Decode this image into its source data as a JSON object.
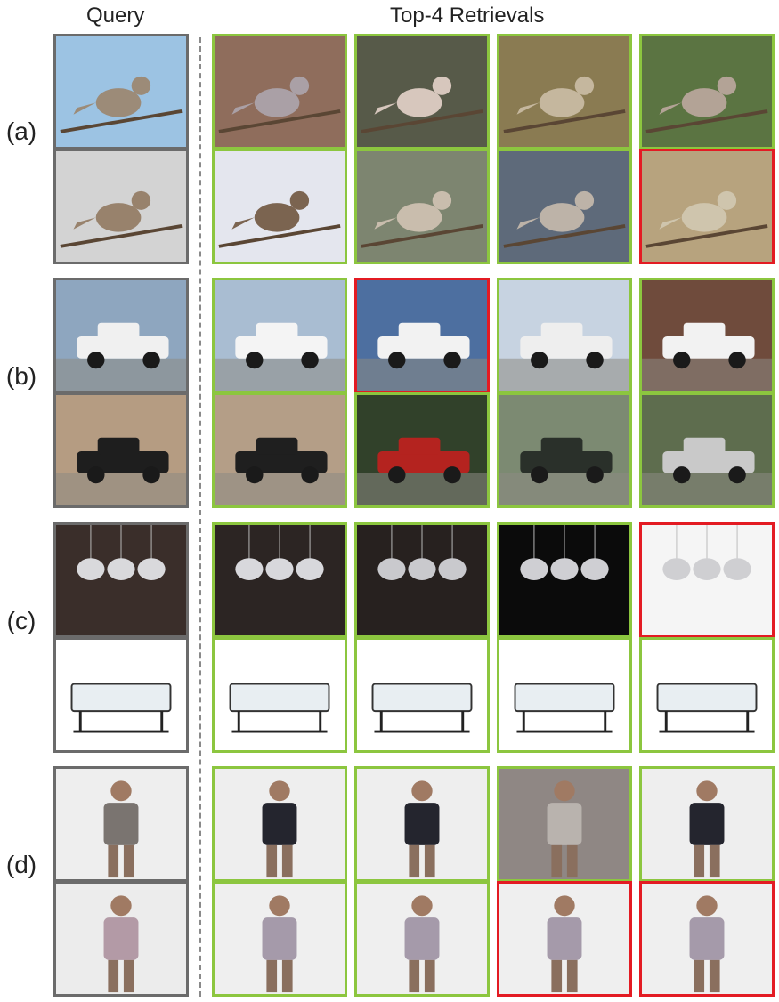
{
  "headers": {
    "query": "Query",
    "retrievals": "Top-4 Retrievals"
  },
  "rows": [
    {
      "label": "(a)",
      "pairs": [
        {
          "subject": "cedar waxwing",
          "query": {
            "bg": "#9cc3e3",
            "fg": "#9c8b78"
          },
          "results": [
            {
              "status": "correct",
              "bg": "#8f6d5c",
              "fg": "#aaa0a6"
            },
            {
              "status": "correct",
              "bg": "#575a49",
              "fg": "#d7c7bd"
            },
            {
              "status": "correct",
              "bg": "#8a7b52",
              "fg": "#c5b79e"
            },
            {
              "status": "correct",
              "bg": "#5b7442",
              "fg": "#b3a396"
            }
          ]
        },
        {
          "subject": "white-throated sparrow",
          "query": {
            "bg": "#d3d3d3",
            "fg": "#98826c"
          },
          "results": [
            {
              "status": "correct",
              "bg": "#e4e6ee",
              "fg": "#7b6450"
            },
            {
              "status": "correct",
              "bg": "#7d8570",
              "fg": "#c9bdad"
            },
            {
              "status": "correct",
              "bg": "#5e6a7a",
              "fg": "#bdb3a8"
            },
            {
              "status": "incorrect",
              "bg": "#b7a37e",
              "fg": "#cfc5ad"
            }
          ]
        }
      ]
    },
    {
      "label": "(b)",
      "pairs": [
        {
          "subject": "white pickup truck",
          "query": {
            "bg": "#8ea6bf",
            "fg": "#f0f0f0"
          },
          "results": [
            {
              "status": "correct",
              "bg": "#a9bdd2",
              "fg": "#f4f4f4"
            },
            {
              "status": "incorrect",
              "bg": "#4d6fa0",
              "fg": "#f2f2f2"
            },
            {
              "status": "correct",
              "bg": "#c7d3e1",
              "fg": "#eeeeee"
            },
            {
              "status": "correct",
              "bg": "#6f4b3c",
              "fg": "#f2f2f2"
            }
          ]
        },
        {
          "subject": "sedan",
          "query": {
            "bg": "#b59c82",
            "fg": "#1e1e1e"
          },
          "results": [
            {
              "status": "correct",
              "bg": "#b49e87",
              "fg": "#1f1f1f"
            },
            {
              "status": "correct",
              "bg": "#31412a",
              "fg": "#b4231f"
            },
            {
              "status": "correct",
              "bg": "#7c8a72",
              "fg": "#2a302a"
            },
            {
              "status": "correct",
              "bg": "#5e6d4e",
              "fg": "#c9c9c9"
            }
          ]
        }
      ]
    },
    {
      "label": "(c)",
      "pairs": [
        {
          "subject": "crystal pendant lamp",
          "query": {
            "bg": "#3a2e2a",
            "fg": "#d9d9dc"
          },
          "results": [
            {
              "status": "correct",
              "bg": "#2c2523",
              "fg": "#d8d8dc"
            },
            {
              "status": "correct",
              "bg": "#27211f",
              "fg": "#c9c9cd"
            },
            {
              "status": "correct",
              "bg": "#0b0b0b",
              "fg": "#cfcfd3"
            },
            {
              "status": "incorrect",
              "bg": "#f5f5f5",
              "fg": "#cfcfd2"
            }
          ]
        },
        {
          "subject": "folding bed",
          "query": {
            "bg": "#ffffff",
            "fg": "#e8eef2"
          },
          "results": [
            {
              "status": "correct",
              "bg": "#ffffff",
              "fg": "#e8eef2"
            },
            {
              "status": "correct",
              "bg": "#ffffff",
              "fg": "#e8eef2"
            },
            {
              "status": "correct",
              "bg": "#ffffff",
              "fg": "#e8eef2"
            },
            {
              "status": "correct",
              "bg": "#ffffff",
              "fg": "#e8eef2"
            }
          ]
        }
      ]
    },
    {
      "label": "(d)",
      "pairs": [
        {
          "subject": "embellished top",
          "query": {
            "bg": "#eeeeee",
            "fg": "#7a7470"
          },
          "results": [
            {
              "status": "correct",
              "bg": "#eeeeee",
              "fg": "#24252e"
            },
            {
              "status": "correct",
              "bg": "#eeeeee",
              "fg": "#24252e"
            },
            {
              "status": "correct",
              "bg": "#8f8784",
              "fg": "#b9b3ae"
            },
            {
              "status": "correct",
              "bg": "#eeeeee",
              "fg": "#24252e"
            }
          ]
        },
        {
          "subject": "striped sweater",
          "query": {
            "bg": "#ececec",
            "fg": "#b39aa6"
          },
          "results": [
            {
              "status": "correct",
              "bg": "#efefef",
              "fg": "#a59aaa"
            },
            {
              "status": "correct",
              "bg": "#efefef",
              "fg": "#a59aaa"
            },
            {
              "status": "incorrect",
              "bg": "#efefef",
              "fg": "#a59aaa"
            },
            {
              "status": "incorrect",
              "bg": "#efefef",
              "fg": "#a59aaa"
            }
          ]
        }
      ]
    }
  ]
}
